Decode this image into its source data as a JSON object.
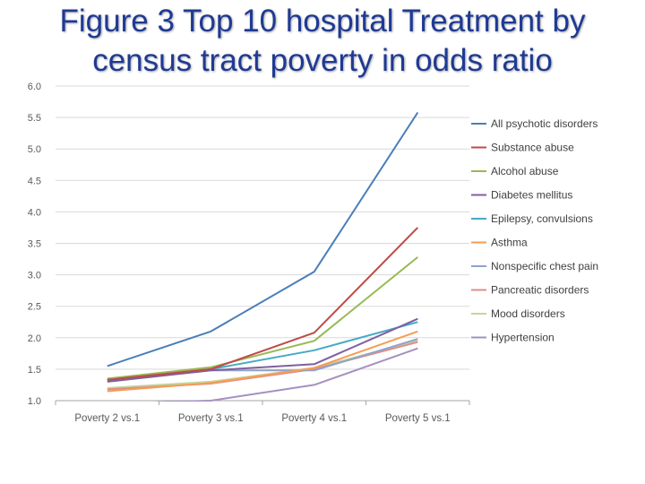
{
  "slide": {
    "title_line1": "Figure 3 Top 10 hospital Treatment by",
    "title_line2": "census tract poverty in odds ratio"
  },
  "chart_data": {
    "type": "line",
    "title": "",
    "xlabel": "",
    "ylabel": "",
    "categories": [
      "Poverty 2 vs.1",
      "Poverty 3 vs.1",
      "Poverty 4 vs.1",
      "Poverty 5 vs.1"
    ],
    "ylim": [
      1.0,
      6.0
    ],
    "y_ticks": [
      "1.0",
      "1.5",
      "2.0",
      "2.5",
      "3.0",
      "3.5",
      "4.0",
      "4.5",
      "5.0",
      "5.5",
      "6.0"
    ],
    "grid": "horizontal",
    "legend_position": "right",
    "series": [
      {
        "name": "All psychotic disorders",
        "color": "#4a7eba",
        "values": [
          1.55,
          2.1,
          3.05,
          5.58
        ]
      },
      {
        "name": "Substance abuse",
        "color": "#be4b48",
        "values": [
          1.33,
          1.5,
          2.08,
          3.75
        ]
      },
      {
        "name": "Alcohol abuse",
        "color": "#98b954",
        "values": [
          1.35,
          1.53,
          1.95,
          3.28
        ]
      },
      {
        "name": "Diabetes mellitus",
        "color": "#7d60a0",
        "values": [
          1.3,
          1.48,
          1.58,
          2.3
        ]
      },
      {
        "name": "Epilepsy, convulsions",
        "color": "#46aac5",
        "values": [
          1.32,
          1.5,
          1.8,
          2.25
        ]
      },
      {
        "name": "Asthma",
        "color": "#f59d56",
        "values": [
          1.15,
          1.28,
          1.52,
          2.1
        ]
      },
      {
        "name": "Nonspecific chest pain",
        "color": "#8fa3c8",
        "values": [
          1.32,
          1.48,
          1.48,
          1.98
        ]
      },
      {
        "name": "Pancreatic disorders",
        "color": "#e08d8b",
        "values": [
          1.18,
          1.27,
          1.5,
          1.93
        ]
      },
      {
        "name": "Mood disorders",
        "color": "#c2d69b",
        "values": [
          1.2,
          1.3,
          1.52,
          1.95
        ]
      },
      {
        "name": "Hypertension",
        "color": "#a590c2",
        "values": [
          0.95,
          1.0,
          1.25,
          1.83
        ]
      }
    ]
  }
}
